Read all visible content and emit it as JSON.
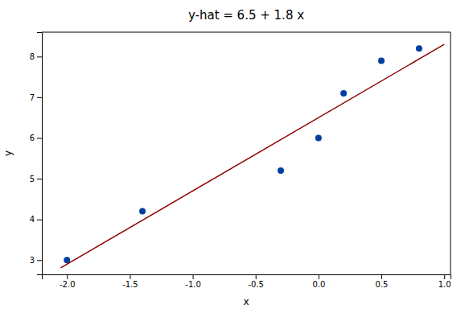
{
  "chart_data": {
    "type": "scatter",
    "title": "y-hat = 6.5 + 1.8 x",
    "xlabel": "x",
    "ylabel": "y",
    "series": [
      {
        "type": "scatter",
        "color": "#003FA0",
        "x": [
          -2.0,
          -1.4,
          -0.3,
          0.0,
          0.2,
          0.5,
          0.8
        ],
        "values": [
          3.0,
          4.2,
          5.2,
          6.0,
          7.1,
          7.9,
          8.2
        ]
      },
      {
        "type": "line",
        "color": "#8B0000",
        "x": [
          -2.05,
          1.0
        ],
        "values": [
          2.81,
          8.3
        ]
      }
    ],
    "xlim": [
      -2.2,
      1.05
    ],
    "ylim": [
      2.65,
      8.6
    ],
    "xticks": [
      {
        "value": -2.0,
        "label": "-2.0"
      },
      {
        "value": -1.5,
        "label": "-1.5"
      },
      {
        "value": -1.0,
        "label": "-1.0"
      },
      {
        "value": -0.5,
        "label": "-0.5"
      },
      {
        "value": 0.0,
        "label": "0.0"
      },
      {
        "value": 0.5,
        "label": "0.5"
      },
      {
        "value": 1.0,
        "label": "1.0"
      }
    ],
    "yticks": [
      3,
      4,
      5,
      6,
      7,
      8
    ],
    "grid": false
  }
}
